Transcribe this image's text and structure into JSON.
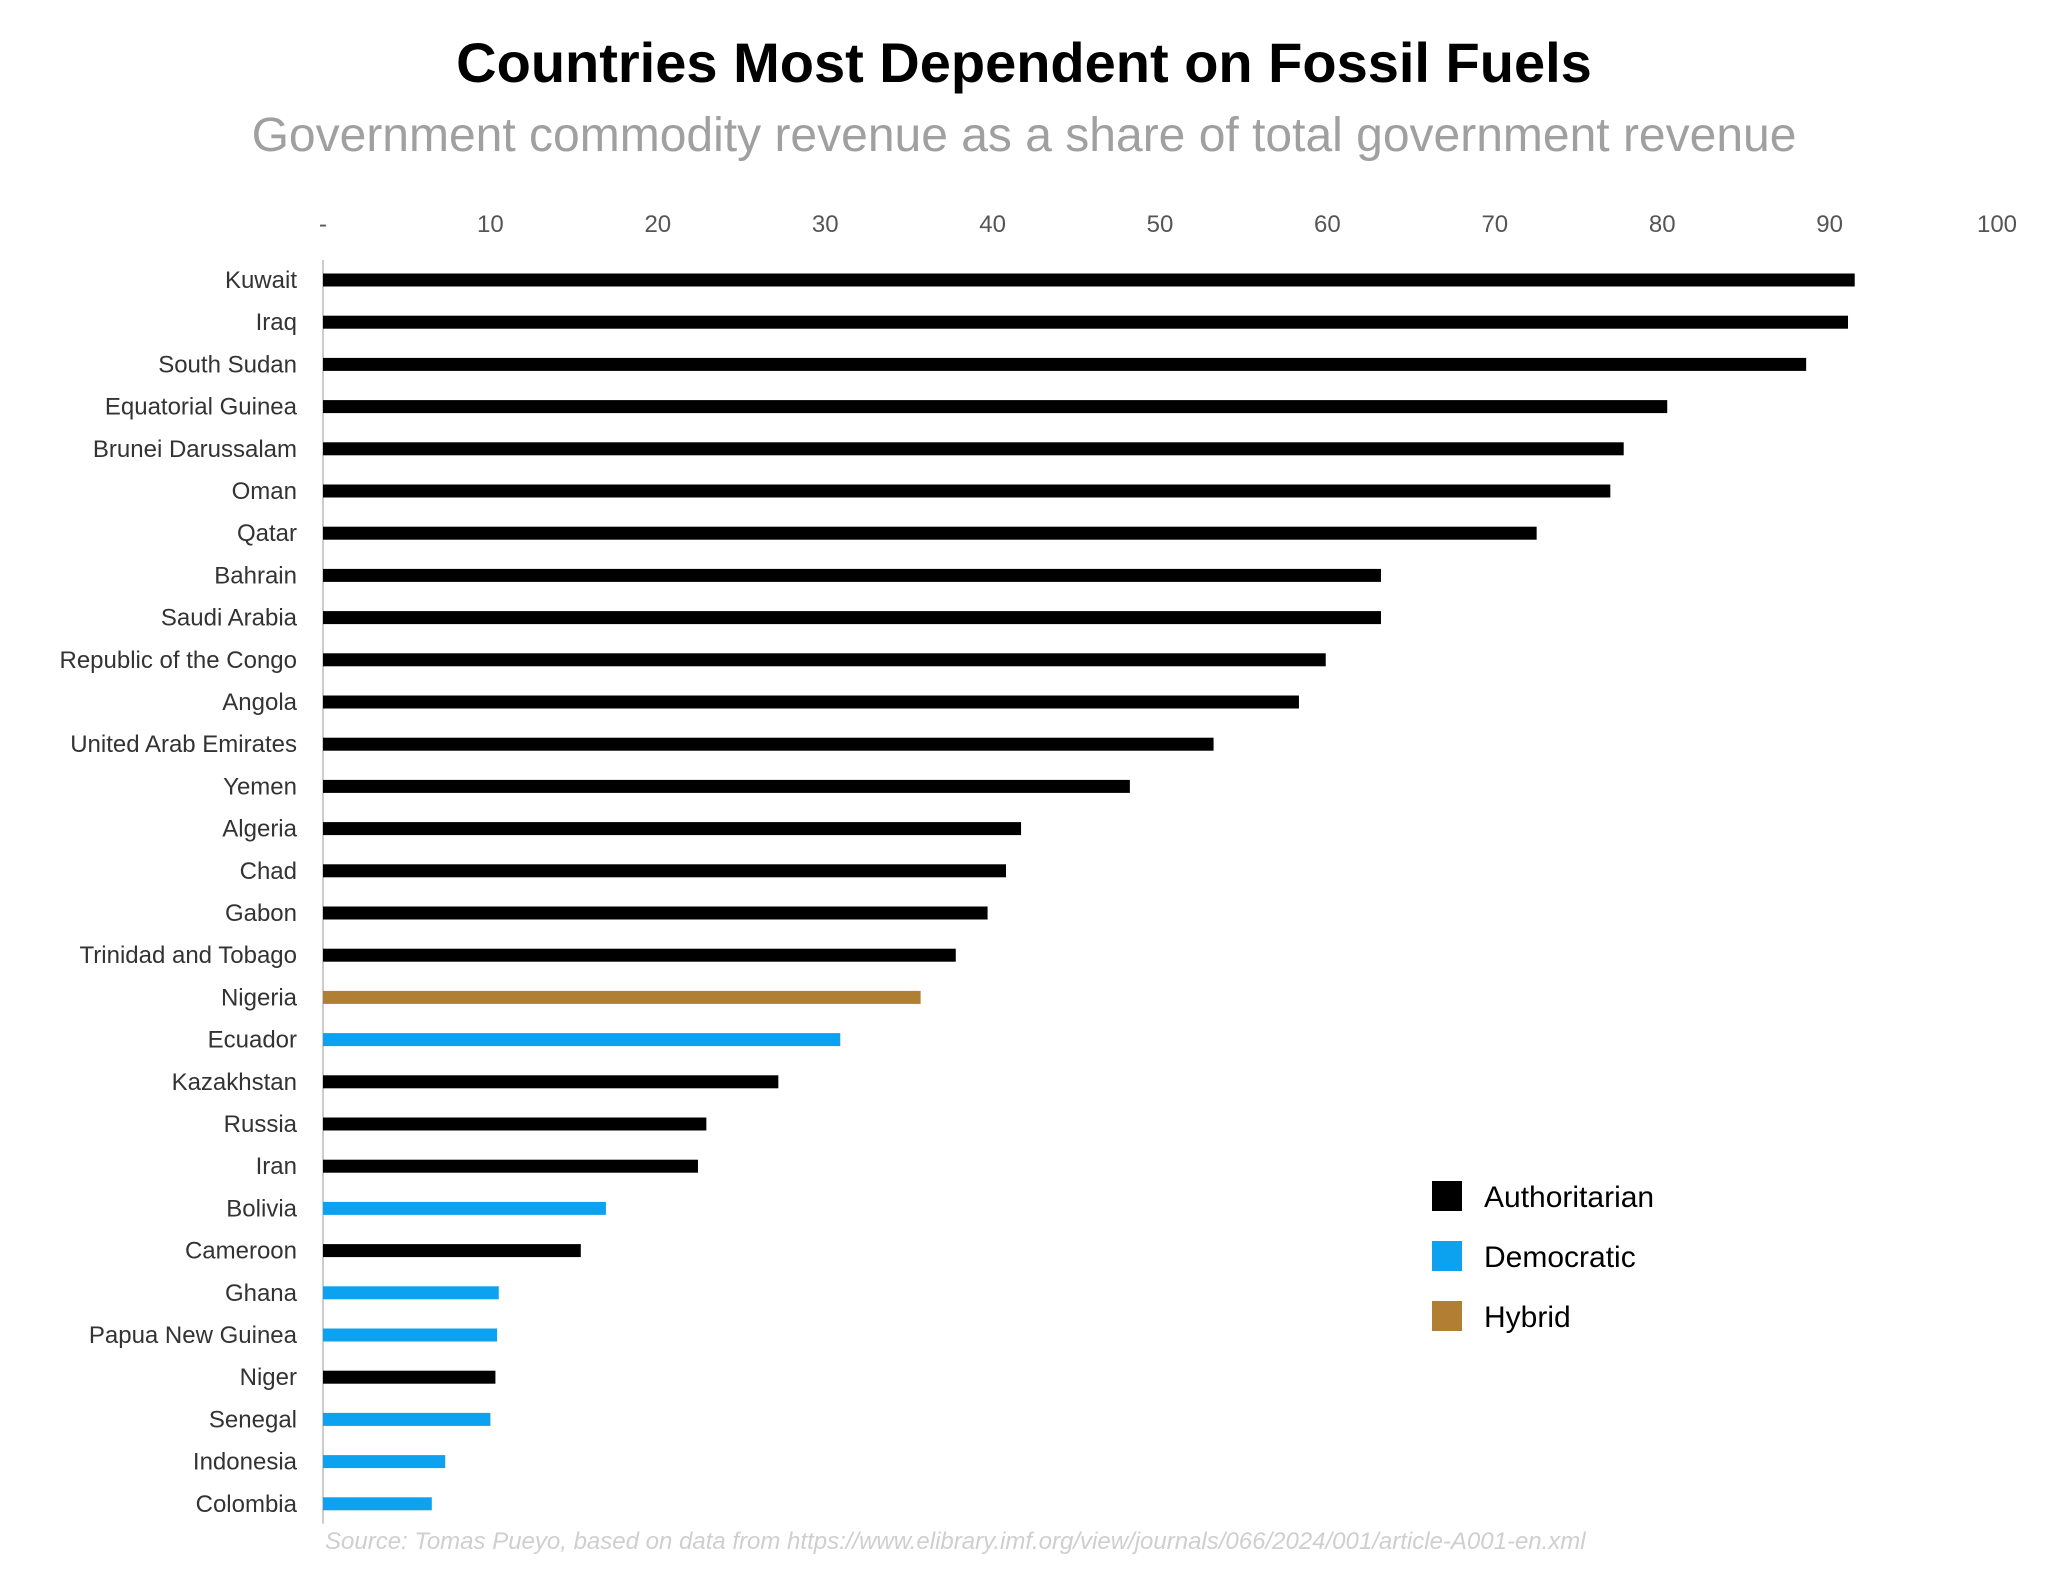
{
  "chart_data": {
    "type": "bar",
    "orientation": "horizontal",
    "title": "Countries Most Dependent on Fossil Fuels",
    "subtitle": "Government commodity revenue as a share of total government revenue",
    "source": "Source: Tomas Pueyo, based on data from https://www.elibrary.imf.org/view/journals/066/2024/001/article-A001-en.xml",
    "xlim": [
      0,
      100
    ],
    "ticks": [
      {
        "value": 0,
        "label": "-"
      },
      {
        "value": 10,
        "label": "10"
      },
      {
        "value": 20,
        "label": "20"
      },
      {
        "value": 30,
        "label": "30"
      },
      {
        "value": 40,
        "label": "40"
      },
      {
        "value": 50,
        "label": "50"
      },
      {
        "value": 60,
        "label": "60"
      },
      {
        "value": 70,
        "label": "70"
      },
      {
        "value": 80,
        "label": "80"
      },
      {
        "value": 90,
        "label": "90"
      },
      {
        "value": 100,
        "label": "100"
      }
    ],
    "axis_position": "top",
    "grid": false,
    "legend_position": "bottom-right",
    "legend": [
      {
        "key": "A",
        "name": "Authoritarian",
        "color": "#000000"
      },
      {
        "key": "D",
        "name": "Democratic",
        "color": "#0da2f0"
      },
      {
        "key": "H",
        "name": "Hybrid",
        "color": "#b07f34"
      }
    ],
    "bars": [
      {
        "category": "Kuwait",
        "value": 91.5,
        "group": "A"
      },
      {
        "category": "Iraq",
        "value": 91.1,
        "group": "A"
      },
      {
        "category": "South Sudan",
        "value": 88.6,
        "group": "A"
      },
      {
        "category": "Equatorial Guinea",
        "value": 80.3,
        "group": "A"
      },
      {
        "category": "Brunei Darussalam",
        "value": 77.7,
        "group": "A"
      },
      {
        "category": "Oman",
        "value": 76.9,
        "group": "A"
      },
      {
        "category": "Qatar",
        "value": 72.5,
        "group": "A"
      },
      {
        "category": "Bahrain",
        "value": 63.2,
        "group": "A"
      },
      {
        "category": "Saudi Arabia",
        "value": 63.2,
        "group": "A"
      },
      {
        "category": "Republic of the Congo",
        "value": 59.9,
        "group": "A"
      },
      {
        "category": "Angola",
        "value": 58.3,
        "group": "A"
      },
      {
        "category": "United Arab Emirates",
        "value": 53.2,
        "group": "A"
      },
      {
        "category": "Yemen",
        "value": 48.2,
        "group": "A"
      },
      {
        "category": "Algeria",
        "value": 41.7,
        "group": "A"
      },
      {
        "category": "Chad",
        "value": 40.8,
        "group": "A"
      },
      {
        "category": "Gabon",
        "value": 39.7,
        "group": "A"
      },
      {
        "category": "Trinidad and Tobago",
        "value": 37.8,
        "group": "A"
      },
      {
        "category": "Nigeria",
        "value": 35.7,
        "group": "H"
      },
      {
        "category": "Ecuador",
        "value": 30.9,
        "group": "D"
      },
      {
        "category": "Kazakhstan",
        "value": 27.2,
        "group": "A"
      },
      {
        "category": "Russia",
        "value": 22.9,
        "group": "A"
      },
      {
        "category": "Iran",
        "value": 22.4,
        "group": "A"
      },
      {
        "category": "Bolivia",
        "value": 16.9,
        "group": "D"
      },
      {
        "category": "Cameroon",
        "value": 15.4,
        "group": "A"
      },
      {
        "category": "Ghana",
        "value": 10.5,
        "group": "D"
      },
      {
        "category": "Papua New Guinea",
        "value": 10.4,
        "group": "D"
      },
      {
        "category": "Niger",
        "value": 10.3,
        "group": "A"
      },
      {
        "category": "Senegal",
        "value": 10.0,
        "group": "D"
      },
      {
        "category": "Indonesia",
        "value": 7.3,
        "group": "D"
      },
      {
        "category": "Colombia",
        "value": 6.5,
        "group": "D"
      }
    ]
  }
}
